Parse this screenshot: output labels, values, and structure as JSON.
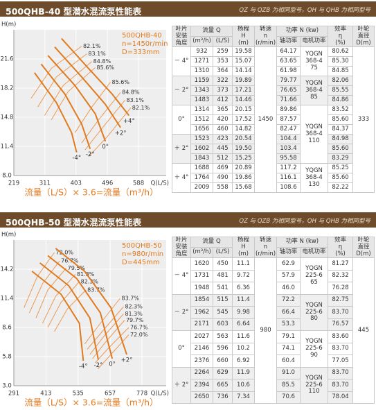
{
  "sections": [
    {
      "header": {
        "title": "500QHB-40 型潜水混流泵性能表",
        "note": "QZ 与 QZB 为相同型号，QH 与 QHB 为相同型号"
      },
      "table": {
        "header": {
          "angle": [
            "叶片",
            "安装",
            "角度"
          ],
          "flow": "流量 Q",
          "flow_units": [
            "(m³/h)",
            "(L/S)"
          ],
          "head": [
            "杨程",
            "H",
            "(m)"
          ],
          "speed": [
            "转速",
            "n",
            "(r/min)"
          ],
          "power": "功率 N (kw)",
          "power_units": [
            "轴功率",
            "电机功率"
          ],
          "efficiency": [
            "效率",
            "η",
            "(%)"
          ],
          "diameter": [
            "叶轮",
            "直径",
            "D(m)"
          ]
        },
        "groups": [
          {
            "angle": "－ 4°",
            "rows": [
              [
                "932",
                "259",
                "19.58",
                "64.17",
                "80.62"
              ],
              [
                "1271",
                "353",
                "15.07",
                "63.65",
                "85.30"
              ],
              [
                "1310",
                "364",
                "14.14",
                "61.98",
                "84.85"
              ]
            ]
          },
          {
            "angle": "－ 2°",
            "rows": [
              [
                "1159",
                "322",
                "19.89",
                "79.77",
                "82.06"
              ],
              [
                "1343",
                "373",
                "17.21",
                "76.65",
                "85.55"
              ],
              [
                "1483",
                "412",
                "14.46",
                "71.66",
                "84.86"
              ]
            ]
          },
          {
            "angle": "0°",
            "rows": [
              [
                "1314",
                "365",
                "20.15",
                "89.86",
                "83.52"
              ],
              [
                "1512",
                "420",
                "17.52",
                "87.57",
                "85.60"
              ],
              [
                "1656",
                "460",
                "14.82",
                "82.47",
                "84.37"
              ]
            ]
          },
          {
            "angle": "＋ 2°",
            "rows": [
              [
                "1523",
                "423",
                "20.54",
                "104.4",
                "84.98"
              ],
              [
                "1602",
                "445",
                "19.50",
                "103.4",
                "85.60"
              ],
              [
                "1843",
                "512",
                "15.25",
                "95.58",
                "83.29"
              ]
            ]
          },
          {
            "angle": "＋ 4°",
            "rows": [
              [
                "1688",
                "469",
                "20.89",
                "117.2",
                "85.25"
              ],
              [
                "1764",
                "490",
                "19.86",
                "116.1",
                "85.60"
              ],
              [
                "2009",
                "558",
                "15.68",
                "108.6",
                "82.22"
              ]
            ]
          }
        ],
        "motors": [
          [
            "YQGN",
            "368-4",
            "75"
          ],
          [
            "YQGN",
            "368-4",
            "85"
          ],
          [
            "YQGN",
            "368-4",
            "110"
          ],
          [
            "YQGN",
            "368-4",
            "130"
          ]
        ],
        "speed": "1450",
        "diameter": "333"
      }
    },
    {
      "header": {
        "title": "500QHB-50 型潜水混流泵性能表",
        "note": "QZ 与 QZB 为相同型号，QH 与 QHB 为相同型号"
      },
      "table": {
        "header": {
          "angle": [
            "叶片",
            "安装",
            "角度"
          ],
          "flow": "流量 Q",
          "flow_units": [
            "(m³/h)",
            "(L/S)"
          ],
          "head": [
            "杨程",
            "H",
            "(m)"
          ],
          "speed": [
            "转速",
            "n",
            "(r/min)"
          ],
          "power": "功率 N (kw)",
          "power_units": [
            "轴功率",
            "电机功率"
          ],
          "efficiency": [
            "效率",
            "η",
            "(%)"
          ],
          "diameter": [
            "叶轮",
            "直径",
            "D(m)"
          ]
        },
        "groups": [
          {
            "angle": "－ 4°",
            "rows": [
              [
                "1620",
                "450",
                "11.1",
                "62.9",
                "81.27"
              ],
              [
                "1731",
                "481",
                "9.72",
                "57.9",
                "82.32"
              ],
              [
                "1948",
                "541",
                "6.36",
                "46.0",
                "76.28"
              ]
            ]
          },
          {
            "angle": "－ 2°",
            "rows": [
              [
                "1854",
                "515",
                "11.4",
                "72.2",
                "82.75"
              ],
              [
                "1962",
                "545",
                "9.98",
                "66.4",
                "83.70"
              ],
              [
                "2171",
                "603",
                "6.64",
                "53.3",
                "76.57"
              ]
            ]
          },
          {
            "angle": "0°",
            "rows": [
              [
                "2027",
                "563",
                "11.6",
                "79.1",
                "83.60"
              ],
              [
                "2146",
                "596",
                "10.2",
                "74.1",
                "83.70"
              ],
              [
                "2376",
                "660",
                "6.92",
                "60.4",
                "77.05"
              ]
            ]
          },
          {
            "angle": "＋ 2°",
            "rows": [
              [
                "2264",
                "629",
                "11.9",
                "91.0",
                "83.70"
              ],
              [
                "2394",
                "665",
                "10.6",
                "85.5",
                "83.70"
              ],
              [
                "2650",
                "736",
                "7.34",
                "70.6",
                "78.04"
              ]
            ]
          }
        ],
        "motors": [
          [
            "YQGN",
            "225-6",
            "65"
          ],
          [
            "YQGN",
            "225-6",
            "80"
          ],
          [
            "YQGN",
            "225-6",
            "90"
          ],
          [
            "YQGN",
            "225-6",
            "110"
          ]
        ],
        "speed": "980",
        "diameter": "445"
      }
    }
  ],
  "chart_data": [
    {
      "type": "line",
      "y_label": "H(m)",
      "x_label": "Q(L/S)",
      "info": [
        "500QHB-40",
        "n=1450r/min",
        "D=333mm"
      ],
      "caption": "流量（L/S）× 3.6=流量（m³/h）",
      "grid": true,
      "xlim": [
        219,
        670
      ],
      "ylim": [
        8,
        25
      ],
      "xticks": [
        219,
        311,
        403,
        496,
        588
      ],
      "yticks": [
        {
          "value": 8,
          "label": "8.0"
        },
        11.4,
        14.8,
        18.2,
        21.6
      ],
      "series": [
        {
          "name": "+4°",
          "color": "#e07a1f",
          "x": [
            360,
            440,
            510,
            560
          ],
          "values": [
            24.0,
            20.5,
            17.5,
            15.0
          ]
        },
        {
          "name": "+2°",
          "color": "#e07a1f",
          "x": [
            340,
            420,
            490,
            535
          ],
          "values": [
            23.0,
            19.5,
            16.3,
            13.6
          ]
        },
        {
          "name": "0°",
          "color": "#e07a1f",
          "x": [
            320,
            400,
            460,
            490
          ],
          "values": [
            22.0,
            18.5,
            15.2,
            12.0
          ]
        },
        {
          "name": "-2°",
          "color": "#e07a1f",
          "x": [
            300,
            370,
            420,
            445
          ],
          "values": [
            21.0,
            17.5,
            14.0,
            11.1
          ]
        },
        {
          "name": "-4°",
          "color": "#e07a1f",
          "x": [
            280,
            345,
            390,
            405
          ],
          "values": [
            20.0,
            16.5,
            13.0,
            10.7
          ]
        }
      ],
      "efficiency_lines": [
        {
          "name": "82.1%",
          "color": "#eb9a55",
          "x": [
            420,
            330,
            270
          ],
          "values": [
            23.1,
            20.5,
            17.0
          ]
        },
        {
          "name": "83.1%",
          "color": "#eb9a55",
          "x": [
            435,
            345,
            290
          ],
          "values": [
            22.2,
            19.5,
            16.0
          ]
        },
        {
          "name": "84.8%",
          "color": "#eb9a55",
          "x": [
            450,
            365,
            310
          ],
          "values": [
            21.3,
            18.5,
            15.0
          ]
        },
        {
          "name": "85.6%",
          "color": "#eb9a55",
          "x": [
            460,
            380,
            330
          ],
          "values": [
            20.6,
            17.8,
            14.5
          ]
        },
        {
          "name": "85.6%",
          "color": "#eb9a55",
          "x": [
            505,
            450,
            400
          ],
          "values": [
            18.9,
            16.0,
            13.0
          ]
        },
        {
          "name": "84.8%",
          "color": "#eb9a55",
          "x": [
            535,
            470,
            420
          ],
          "values": [
            17.7,
            14.5,
            11.8
          ]
        },
        {
          "name": "83.1%",
          "color": "#eb9a55",
          "x": [
            548,
            480,
            430
          ],
          "values": [
            16.8,
            13.5,
            11.0
          ]
        },
        {
          "name": "82.1%",
          "color": "#eb9a55",
          "x": [
            565,
            495,
            440
          ],
          "values": [
            15.9,
            12.5,
            10.2
          ]
        }
      ]
    },
    {
      "type": "line",
      "y_label": "H(m)",
      "x_label": "Q(L/S)",
      "info": [
        "500QHB-50",
        "n=980r/min",
        "D=445mm"
      ],
      "caption": "流量（L/S）× 3.6=流量（m³/h）",
      "grid": true,
      "xlim": [
        291,
        870
      ],
      "ylim": [
        3,
        17
      ],
      "xticks": [
        291,
        413,
        535,
        657,
        778
      ],
      "yticks": [
        {
          "value": 3,
          "label": "3.0"
        },
        5.8,
        8.6,
        11.4,
        14.2
      ],
      "series": [
        {
          "name": "+2°",
          "color": "#e07a1f",
          "x": [
            450,
            560,
            660,
            720
          ],
          "values": [
            16.2,
            14.0,
            10.5,
            6.0
          ]
        },
        {
          "name": "0°",
          "color": "#e07a1f",
          "x": [
            420,
            530,
            620,
            665
          ],
          "values": [
            15.5,
            13.3,
            10.0,
            5.6
          ]
        },
        {
          "name": "-2°",
          "color": "#e07a1f",
          "x": [
            390,
            500,
            580,
            612
          ],
          "values": [
            14.8,
            12.6,
            9.5,
            5.5
          ]
        },
        {
          "name": "-4°",
          "color": "#e07a1f",
          "x": [
            360,
            470,
            540,
            555
          ],
          "values": [
            14.0,
            11.8,
            9.0,
            5.4
          ]
        }
      ],
      "efficiency_lines": [
        {
          "name": "72.0%",
          "color": "#eb9a55",
          "x": [
            445,
            380,
            330
          ],
          "values": [
            15.8,
            13.5,
            10.5
          ]
        },
        {
          "name": "76.7%",
          "color": "#eb9a55",
          "x": [
            465,
            400,
            350
          ],
          "values": [
            15.0,
            12.8,
            10.0
          ]
        },
        {
          "name": "79.5%",
          "color": "#eb9a55",
          "x": [
            490,
            420,
            375
          ],
          "values": [
            14.3,
            12.2,
            9.5
          ]
        },
        {
          "name": "81.3%",
          "color": "#eb9a55",
          "x": [
            525,
            450,
            400
          ],
          "values": [
            13.7,
            11.6,
            9.0
          ]
        },
        {
          "name": "82.3%",
          "color": "#eb9a55",
          "x": [
            540,
            470,
            420
          ],
          "values": [
            13.0,
            11.0,
            8.6
          ]
        },
        {
          "name": "83.7%",
          "color": "#eb9a55",
          "x": [
            565,
            495,
            445
          ],
          "values": [
            12.2,
            10.4,
            8.2
          ]
        },
        {
          "name": "83.7%",
          "color": "#eb9a55",
          "x": [
            695,
            620,
            560
          ],
          "values": [
            11.4,
            9.0,
            7.0
          ]
        },
        {
          "name": "82.3%",
          "color": "#eb9a55",
          "x": [
            708,
            630,
            570
          ],
          "values": [
            10.6,
            8.3,
            6.5
          ]
        },
        {
          "name": "81.3%",
          "color": "#eb9a55",
          "x": [
            708,
            635,
            580
          ],
          "values": [
            9.9,
            7.8,
            6.0
          ]
        },
        {
          "name": "79.7%",
          "color": "#eb9a55",
          "x": [
            712,
            640,
            590
          ],
          "values": [
            9.3,
            7.2,
            5.6
          ]
        },
        {
          "name": "76.7%",
          "color": "#eb9a55",
          "x": [
            728,
            650,
            600
          ],
          "values": [
            8.6,
            6.6,
            5.2
          ]
        },
        {
          "name": "72.0%",
          "color": "#eb9a55",
          "x": [
            728,
            660,
            610
          ],
          "values": [
            7.9,
            6.0,
            4.6
          ]
        }
      ]
    }
  ]
}
